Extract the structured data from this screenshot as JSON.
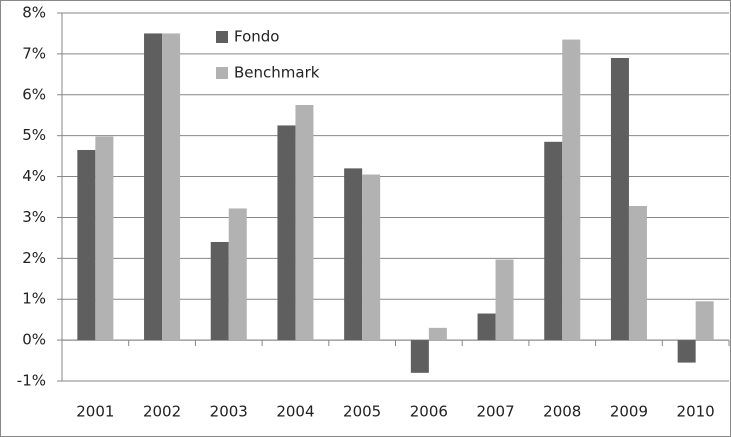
{
  "chart_data": {
    "type": "bar",
    "categories": [
      "2001",
      "2002",
      "2003",
      "2004",
      "2005",
      "2006",
      "2007",
      "2008",
      "2009",
      "2010"
    ],
    "series": [
      {
        "name": "Fondo",
        "color": "#5f5f5f",
        "values": [
          4.65,
          7.5,
          2.4,
          5.25,
          4.2,
          -0.8,
          0.65,
          4.85,
          6.9,
          -0.55
        ]
      },
      {
        "name": "Benchmark",
        "color": "#b2b2b2",
        "values": [
          4.98,
          7.5,
          3.22,
          5.75,
          4.05,
          0.3,
          1.97,
          7.35,
          3.28,
          0.95
        ]
      }
    ],
    "ylim": [
      -1,
      8
    ],
    "yticks": [
      {
        "value": -1,
        "label": "-1%"
      },
      {
        "value": 0,
        "label": "0%"
      },
      {
        "value": 1,
        "label": "1%"
      },
      {
        "value": 2,
        "label": "2%"
      },
      {
        "value": 3,
        "label": "3%"
      },
      {
        "value": 4,
        "label": "4%"
      },
      {
        "value": 5,
        "label": "5%"
      },
      {
        "value": 6,
        "label": "6%"
      },
      {
        "value": 7,
        "label": "7%"
      },
      {
        "value": 8,
        "label": "8%"
      }
    ],
    "grid": true,
    "legend": "top-left"
  }
}
